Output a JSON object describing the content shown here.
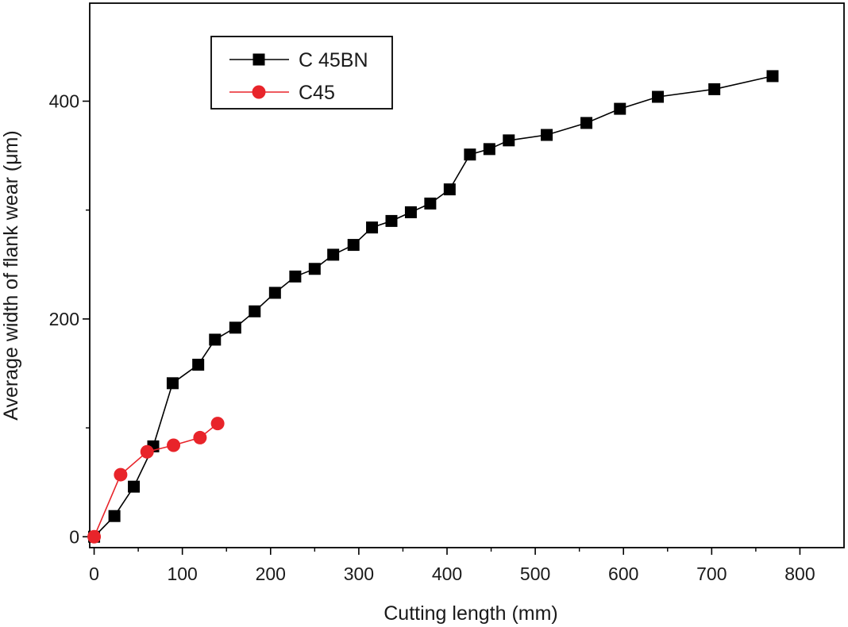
{
  "chart_data": {
    "type": "line",
    "title": "",
    "xlabel": "Cutting length (mm)",
    "ylabel": "Average width of flank wear (μm)",
    "xlim": [
      -5,
      850
    ],
    "ylim": [
      -10,
      490
    ],
    "xticks": [
      0,
      100,
      200,
      300,
      400,
      500,
      600,
      700,
      800
    ],
    "yticks": [
      0,
      200,
      400
    ],
    "grid": false,
    "legend_position": "top-left",
    "series": [
      {
        "name": "C 45BN",
        "color": "#000000",
        "marker": "square",
        "x": [
          0,
          23,
          45,
          67,
          89,
          118,
          137,
          160,
          182,
          205,
          228,
          250,
          271,
          294,
          315,
          337,
          359,
          381,
          403,
          426,
          448,
          470,
          513,
          558,
          596,
          639,
          703,
          769
        ],
        "y": [
          0,
          19,
          46,
          83,
          141,
          158,
          181,
          192,
          207,
          224,
          239,
          246,
          259,
          268,
          284,
          290,
          298,
          306,
          319,
          351,
          356,
          364,
          369,
          380,
          393,
          404,
          411,
          423
        ]
      },
      {
        "name": "C45",
        "color": "#e8242a",
        "marker": "circle",
        "x": [
          0,
          30,
          60,
          90,
          120,
          140
        ],
        "y": [
          0,
          57,
          78,
          84,
          91,
          104
        ]
      }
    ]
  }
}
